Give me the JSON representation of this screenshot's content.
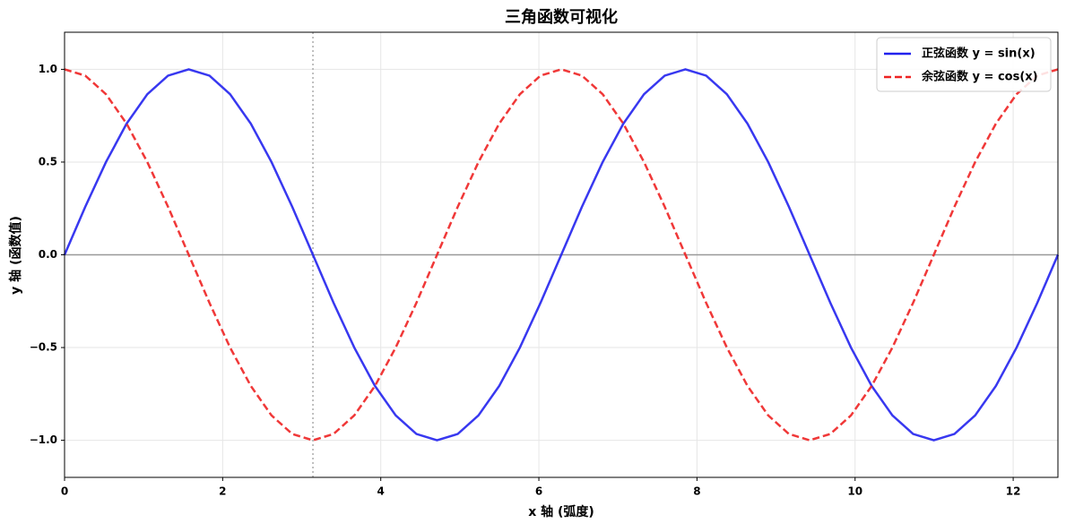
{
  "chart_data": {
    "type": "line",
    "title": "三角函数可视化",
    "x_label": "x 轴 (弧度)",
    "y_label": "y 轴 (函数值)",
    "x": [
      0,
      0.262,
      0.524,
      0.785,
      1.047,
      1.309,
      1.571,
      1.833,
      2.094,
      2.356,
      2.618,
      2.88,
      3.142,
      3.403,
      3.665,
      3.927,
      4.189,
      4.451,
      4.712,
      4.974,
      5.236,
      5.498,
      5.76,
      6.021,
      6.283,
      6.545,
      6.807,
      7.069,
      7.33,
      7.592,
      7.854,
      8.116,
      8.378,
      8.639,
      8.901,
      9.163,
      9.425,
      9.687,
      9.948,
      10.21,
      10.472,
      10.734,
      10.996,
      11.257,
      11.519,
      11.781,
      12.043,
      12.305,
      12.566
    ],
    "series": [
      {
        "name": "正弦函数 y = sin(x)",
        "color": "#2222ee",
        "dash": false,
        "values": [
          0,
          0.259,
          0.5,
          0.707,
          0.866,
          0.966,
          1,
          0.966,
          0.866,
          0.707,
          0.5,
          0.259,
          0,
          -0.259,
          -0.5,
          -0.707,
          -0.866,
          -0.966,
          -1,
          -0.966,
          -0.866,
          -0.707,
          -0.5,
          -0.259,
          0,
          0.259,
          0.5,
          0.707,
          0.866,
          0.966,
          1,
          0.966,
          0.866,
          0.707,
          0.5,
          0.259,
          0,
          -0.259,
          -0.5,
          -0.707,
          -0.866,
          -0.966,
          -1,
          -0.966,
          -0.866,
          -0.707,
          -0.5,
          -0.259,
          0
        ]
      },
      {
        "name": "余弦函数 y = cos(x)",
        "color": "#ee2222",
        "dash": true,
        "values": [
          1,
          0.966,
          0.866,
          0.707,
          0.5,
          0.259,
          0,
          -0.259,
          -0.5,
          -0.707,
          -0.866,
          -0.966,
          -1,
          -0.966,
          -0.866,
          -0.707,
          -0.5,
          -0.259,
          0,
          0.259,
          0.5,
          0.707,
          0.866,
          0.966,
          1,
          0.966,
          0.866,
          0.707,
          0.5,
          0.259,
          0,
          -0.259,
          -0.5,
          -0.707,
          -0.866,
          -0.966,
          -1,
          -0.966,
          -0.866,
          -0.707,
          -0.5,
          -0.259,
          0,
          0.259,
          0.5,
          0.707,
          0.866,
          0.966,
          1
        ]
      }
    ],
    "xlim": [
      0,
      12.566
    ],
    "ylim": [
      -1.2,
      1.2
    ],
    "xticks": [
      0,
      2,
      4,
      6,
      8,
      10,
      12
    ],
    "yticks": [
      {
        "value": -1,
        "label": "−1.0"
      },
      {
        "value": -0.5,
        "label": "−0.5"
      },
      {
        "value": 0,
        "label": "0.0"
      },
      0.5,
      {
        "value": 1,
        "label": "1.0"
      }
    ],
    "reference_lines": {
      "x": 3.142,
      "y": 0
    },
    "grid": true,
    "legend": "upper right"
  }
}
